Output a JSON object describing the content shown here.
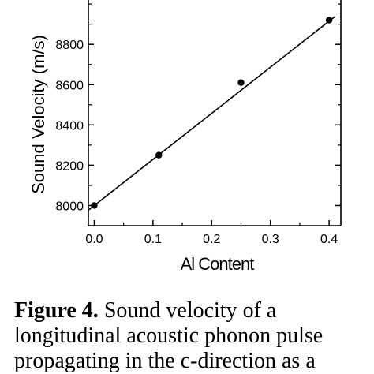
{
  "chart_data": {
    "type": "scatter",
    "title": "",
    "xlabel": "Al Content",
    "ylabel": "Sound Velocity (m/s)",
    "xlim": [
      -0.01,
      0.42
    ],
    "ylim": [
      7900,
      9020
    ],
    "xticks": [
      0.0,
      0.1,
      0.2,
      0.3,
      0.4
    ],
    "xtick_labels": [
      "0.0",
      "0.1",
      "0.2",
      "0.3",
      "0.4"
    ],
    "yticks": [
      8000,
      8200,
      8400,
      8600,
      8800
    ],
    "ytick_labels": [
      "8000",
      "8200",
      "8400",
      "8600",
      "8800"
    ],
    "grid": false,
    "series": [
      {
        "type": "scatter",
        "x": [
          0.0,
          0.11,
          0.25,
          0.4
        ],
        "y": [
          8000,
          8250,
          8610,
          8920
        ]
      }
    ],
    "fit_line": {
      "x": [
        -0.01,
        0.41
      ],
      "y": [
        7977,
        8938
      ]
    }
  },
  "caption": {
    "label": "Figure 4.",
    "text": " Sound velocity of a longitudinal acoustic phonon pulse propagating in the c-direction as a"
  }
}
